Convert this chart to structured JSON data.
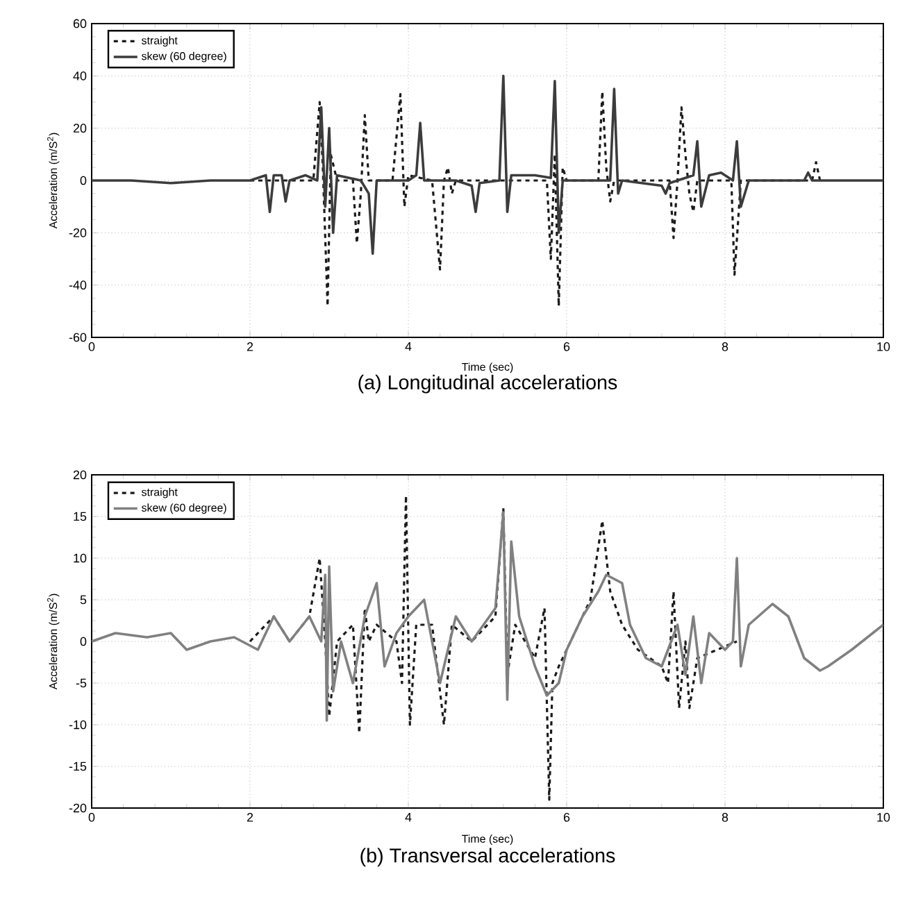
{
  "chart_data": [
    {
      "type": "line",
      "title": "(a) Longitudinal accelerations",
      "xlabel": "Time (sec)",
      "ylabel": "Acceleration (m/S$^{2}$)",
      "xlim": [
        0,
        10
      ],
      "ylim": [
        -60,
        60
      ],
      "xticks": [
        0,
        2,
        4,
        6,
        8,
        10
      ],
      "yticks": [
        -60,
        -40,
        -20,
        0,
        20,
        40,
        60
      ],
      "grid": true,
      "legend": "top left",
      "marker": "none",
      "series": [
        {
          "name": "straight",
          "color": "#1a1a1a",
          "line_style": "dashed",
          "x": [
            2.0,
            2.8,
            2.88,
            2.92,
            2.98,
            3.02,
            3.1,
            3.3,
            3.35,
            3.4,
            3.45,
            3.5,
            3.8,
            3.9,
            3.95,
            4.0,
            4.3,
            4.4,
            4.45,
            4.5,
            4.55,
            4.6,
            5.5,
            5.75,
            5.8,
            5.85,
            5.9,
            5.95,
            6.0,
            6.4,
            6.45,
            6.5,
            6.55,
            6.6,
            7.3,
            7.35,
            7.4,
            7.45,
            7.5,
            7.55,
            7.6,
            7.65,
            8.0,
            8.08,
            8.12,
            8.2,
            9.1,
            9.15,
            9.2
          ],
          "values": [
            0,
            0,
            30,
            5,
            -48,
            10,
            0,
            0,
            -24,
            -5,
            25,
            0,
            0,
            33,
            -10,
            2,
            0,
            -34,
            0,
            5,
            -5,
            0,
            0,
            0,
            -30,
            10,
            -48,
            5,
            0,
            0,
            34,
            5,
            -8,
            0,
            0,
            -22,
            0,
            28,
            10,
            -5,
            -12,
            0,
            0,
            0,
            -36,
            0,
            0,
            7,
            0
          ]
        },
        {
          "name": "skew (60 degree)",
          "color": "#3c3c3c",
          "line_style": "solid",
          "x": [
            0,
            0.5,
            1.0,
            1.5,
            2.0,
            2.2,
            2.25,
            2.3,
            2.4,
            2.45,
            2.5,
            2.7,
            2.85,
            2.9,
            2.95,
            3.0,
            3.05,
            3.1,
            3.4,
            3.5,
            3.55,
            3.6,
            4.0,
            4.1,
            4.15,
            4.2,
            4.6,
            4.8,
            4.85,
            4.9,
            5.15,
            5.2,
            5.25,
            5.3,
            5.6,
            5.8,
            5.85,
            5.9,
            5.95,
            6.2,
            6.55,
            6.6,
            6.65,
            6.7,
            7.2,
            7.25,
            7.3,
            7.6,
            7.65,
            7.7,
            7.8,
            7.95,
            8.1,
            8.15,
            8.2,
            8.3,
            9.0,
            9.05,
            9.1,
            9.5,
            10
          ],
          "values": [
            0,
            0,
            -1,
            0,
            0,
            2,
            -12,
            2,
            2,
            -8,
            0,
            2,
            0,
            28,
            -10,
            20,
            -20,
            2,
            0,
            -5,
            -28,
            0,
            0,
            2,
            22,
            0,
            0,
            -2,
            -12,
            -1,
            0,
            40,
            -12,
            2,
            2,
            1,
            38,
            -20,
            0,
            0,
            0,
            35,
            -5,
            0,
            -2,
            -5,
            -1,
            2,
            15,
            -10,
            2,
            3,
            0,
            15,
            -10,
            0,
            0,
            3,
            0,
            0,
            0
          ]
        }
      ]
    },
    {
      "type": "line",
      "title": "(b) Transversal accelerations",
      "xlabel": "Time (sec)",
      "ylabel": "Acceleration (m/S$^{2}$)",
      "xlim": [
        0,
        10
      ],
      "ylim": [
        -20,
        20
      ],
      "xticks": [
        0,
        2,
        4,
        6,
        8,
        10
      ],
      "yticks": [
        -20,
        -15,
        -10,
        -5,
        0,
        5,
        10,
        15,
        20
      ],
      "grid": true,
      "legend": "top left",
      "marker": "none",
      "series": [
        {
          "name": "straight",
          "color": "#1a1a1a",
          "line_style": "dashed",
          "x": [
            2.0,
            2.3,
            2.5,
            2.75,
            2.88,
            2.95,
            3.0,
            3.1,
            3.3,
            3.38,
            3.45,
            3.5,
            3.6,
            3.85,
            3.92,
            3.97,
            4.02,
            4.1,
            4.3,
            4.45,
            4.55,
            4.8,
            5.1,
            5.2,
            5.25,
            5.35,
            5.6,
            5.72,
            5.78,
            5.82,
            5.9,
            6.1,
            6.3,
            6.45,
            6.55,
            6.7,
            6.9,
            7.2,
            7.28,
            7.35,
            7.42,
            7.5,
            7.55,
            7.65,
            7.9,
            8.15
          ],
          "values": [
            0,
            3,
            0,
            3,
            10,
            0,
            -9,
            0,
            2,
            -11,
            4,
            0,
            2,
            0,
            -5,
            17.5,
            -10,
            2,
            2,
            -10,
            2,
            0,
            3,
            16,
            -4,
            2,
            -2,
            4,
            -19,
            -5,
            -3,
            1,
            5,
            14.5,
            6,
            2,
            -1,
            -3,
            -5,
            6,
            -8,
            0,
            -8,
            -2,
            -1,
            0
          ]
        },
        {
          "name": "skew (60 degree)",
          "color": "#808080",
          "line_style": "solid",
          "x": [
            0,
            0.3,
            0.7,
            1.0,
            1.2,
            1.5,
            1.8,
            2.1,
            2.3,
            2.5,
            2.75,
            2.9,
            2.95,
            2.97,
            3.0,
            3.05,
            3.15,
            3.3,
            3.45,
            3.6,
            3.7,
            3.85,
            4.0,
            4.2,
            4.4,
            4.6,
            4.8,
            5.1,
            5.2,
            5.25,
            5.3,
            5.4,
            5.6,
            5.75,
            5.9,
            6.0,
            6.2,
            6.4,
            6.5,
            6.7,
            6.8,
            7.0,
            7.2,
            7.4,
            7.5,
            7.6,
            7.7,
            7.8,
            8.0,
            8.1,
            8.15,
            8.2,
            8.3,
            8.6,
            8.8,
            9.0,
            9.2,
            9.3,
            9.6,
            10
          ],
          "values": [
            0,
            1,
            0.5,
            1,
            -1,
            0,
            0.5,
            -1,
            3,
            0,
            3,
            0,
            8,
            -9.5,
            9,
            -6,
            0,
            -5,
            3,
            7,
            -3,
            1,
            3,
            5,
            -5,
            3,
            0,
            4,
            15.5,
            -7,
            12,
            3,
            -3,
            -6.5,
            -5,
            -1,
            3,
            6,
            8,
            7,
            2,
            -2,
            -3,
            2,
            -4,
            3,
            -5,
            1,
            -1,
            0,
            10,
            -3,
            2,
            4.5,
            3,
            -2,
            -3.5,
            -3,
            -1,
            2
          ]
        }
      ]
    }
  ]
}
